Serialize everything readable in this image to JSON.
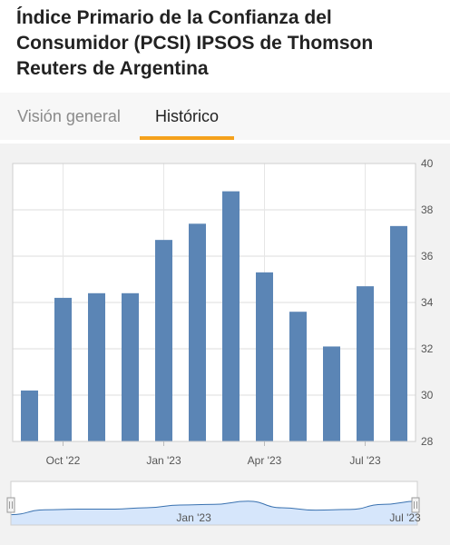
{
  "page": {
    "title": "Índice Primario de la Confianza del Consumidor (PCSI) IPSOS de Thomson Reuters de Argentina"
  },
  "tabs": [
    {
      "label": "Visión general",
      "active": false
    },
    {
      "label": "Histórico",
      "active": true
    }
  ],
  "colors": {
    "bar": "#5b85b5",
    "accent": "#f5a11c",
    "navigator_fill": "#d6e6fb",
    "navigator_line": "#3a72b0"
  },
  "chart_data": {
    "type": "bar",
    "values": [
      30.2,
      34.2,
      34.4,
      34.4,
      36.7,
      37.4,
      38.8,
      35.3,
      33.6,
      32.1,
      34.7,
      37.3
    ],
    "ylim": [
      28,
      40
    ],
    "yticks": [
      "28",
      "30",
      "32",
      "34",
      "36",
      "38",
      "40"
    ],
    "xtick_labels": [
      {
        "label": "Oct '22",
        "index": 1
      },
      {
        "label": "Jan '23",
        "index": 4
      },
      {
        "label": "Apr '23",
        "index": 7
      },
      {
        "label": "Jul '23",
        "index": 10
      }
    ],
    "grid": true,
    "navigator": {
      "labels": [
        {
          "label": "Jan '23",
          "fraction": 0.45
        },
        {
          "label": "Jul '23",
          "fraction": 0.97
        }
      ],
      "series": [
        31.0,
        32.4,
        32.6,
        32.6,
        33.0,
        33.8,
        34.0,
        34.9,
        33.0,
        32.3,
        32.5,
        34.0,
        34.9
      ],
      "selection": [
        0,
        1
      ]
    }
  }
}
